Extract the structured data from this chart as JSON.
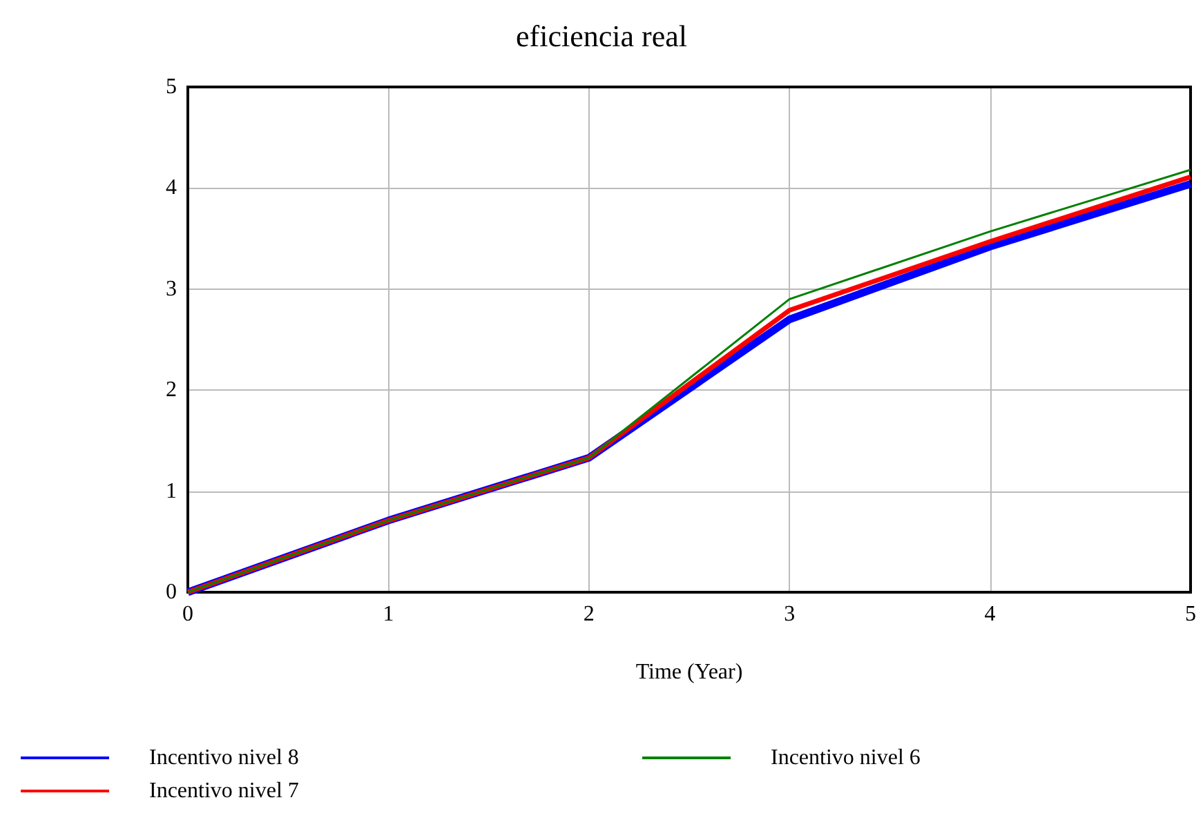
{
  "chart_data": {
    "type": "line",
    "title": "eficiencia real",
    "xlabel": "Time (Year)",
    "x": [
      0,
      1,
      2,
      3,
      4,
      5
    ],
    "series": [
      {
        "name": "Incentivo nivel 8",
        "color": "#0000ff",
        "values": [
          0,
          0.71,
          1.33,
          2.7,
          3.42,
          4.04
        ]
      },
      {
        "name": "Incentivo nivel 7",
        "color": "#ff0000",
        "values": [
          0,
          0.71,
          1.33,
          2.79,
          3.47,
          4.11
        ]
      },
      {
        "name": "Incentivo nivel 6",
        "color": "#008000",
        "values": [
          0,
          0.71,
          1.33,
          2.9,
          3.57,
          4.18
        ]
      }
    ],
    "xlim": [
      0,
      5
    ],
    "xticks": [
      0,
      1,
      2,
      3,
      4,
      5
    ],
    "ylim": [
      0,
      5
    ],
    "yticks": [
      0,
      1,
      2,
      3,
      4,
      5
    ],
    "grid": true,
    "legend": "bottom",
    "marker": "none",
    "line_style": "solid"
  }
}
